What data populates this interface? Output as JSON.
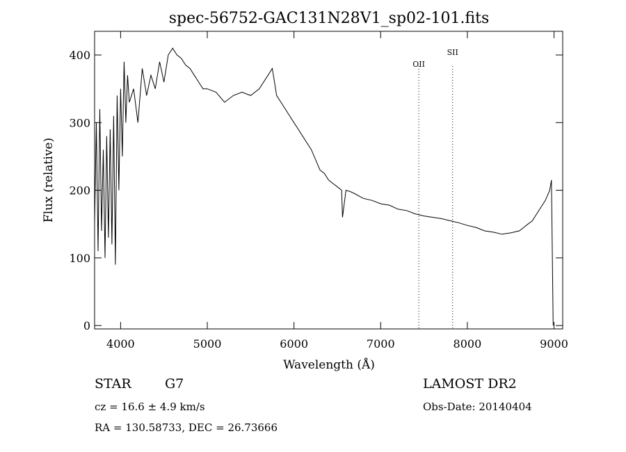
{
  "page_title": "spec-56752-GAC131N28V1_sp02-101.fits",
  "footer": {
    "class_label": "STAR",
    "subclass_label": "G7",
    "survey": "LAMOST DR2",
    "cz": "cz = 16.6 ± 4.9 km/s",
    "obs_date": "Obs-Date: 20140404",
    "coords": "RA = 130.58733, DEC =  26.73666"
  },
  "chart_data": {
    "type": "line",
    "title": "spec-56752-GAC131N28V1_sp02-101.fits",
    "xlabel": "Wavelength (Å)",
    "ylabel": "Flux (relative)",
    "xlim": [
      3700,
      9100
    ],
    "ylim": [
      -5,
      435
    ],
    "x_ticks": [
      4000,
      5000,
      6000,
      7000,
      8000,
      9000
    ],
    "y_ticks": [
      0,
      100,
      200,
      300,
      400
    ],
    "grid": false,
    "line_color": "#000000",
    "annotations": [
      {
        "label": "OII",
        "x": 7440
      },
      {
        "label": "SII",
        "x": 7830
      }
    ],
    "series": [
      {
        "x": [
          3700,
          3720,
          3740,
          3760,
          3780,
          3800,
          3820,
          3840,
          3860,
          3880,
          3900,
          3920,
          3940,
          3960,
          3980,
          4000,
          4020,
          4040,
          4060,
          4080,
          4100,
          4150,
          4200,
          4250,
          4300,
          4350,
          4400,
          4450,
          4500,
          4550,
          4600,
          4650,
          4700,
          4750,
          4800,
          4850,
          4900,
          4950,
          5000,
          5100,
          5200,
          5300,
          5400,
          5500,
          5600,
          5700,
          5750,
          5800,
          5850,
          5900,
          5950,
          6000,
          6050,
          6100,
          6150,
          6200,
          6250,
          6300,
          6350,
          6400,
          6450,
          6500,
          6550,
          6560,
          6600,
          6650,
          6700,
          6800,
          6900,
          7000,
          7100,
          7200,
          7300,
          7400,
          7500,
          7600,
          7700,
          7800,
          7900,
          8000,
          8100,
          8200,
          8300,
          8400,
          8500,
          8600,
          8650,
          8700,
          8750,
          8800,
          8850,
          8900,
          8950,
          8970,
          8990
        ],
        "y": [
          150,
          300,
          110,
          320,
          140,
          260,
          100,
          280,
          130,
          290,
          120,
          310,
          90,
          340,
          200,
          350,
          250,
          390,
          300,
          370,
          330,
          350,
          300,
          380,
          340,
          370,
          350,
          390,
          360,
          400,
          410,
          400,
          395,
          385,
          380,
          370,
          360,
          350,
          350,
          345,
          330,
          340,
          345,
          340,
          350,
          370,
          380,
          340,
          330,
          320,
          310,
          300,
          290,
          280,
          270,
          260,
          245,
          230,
          225,
          215,
          210,
          205,
          200,
          160,
          200,
          198,
          195,
          188,
          185,
          180,
          178,
          172,
          170,
          165,
          162,
          160,
          158,
          155,
          152,
          148,
          145,
          140,
          138,
          135,
          137,
          140,
          145,
          150,
          155,
          165,
          175,
          185,
          200,
          215,
          0
        ]
      }
    ]
  }
}
